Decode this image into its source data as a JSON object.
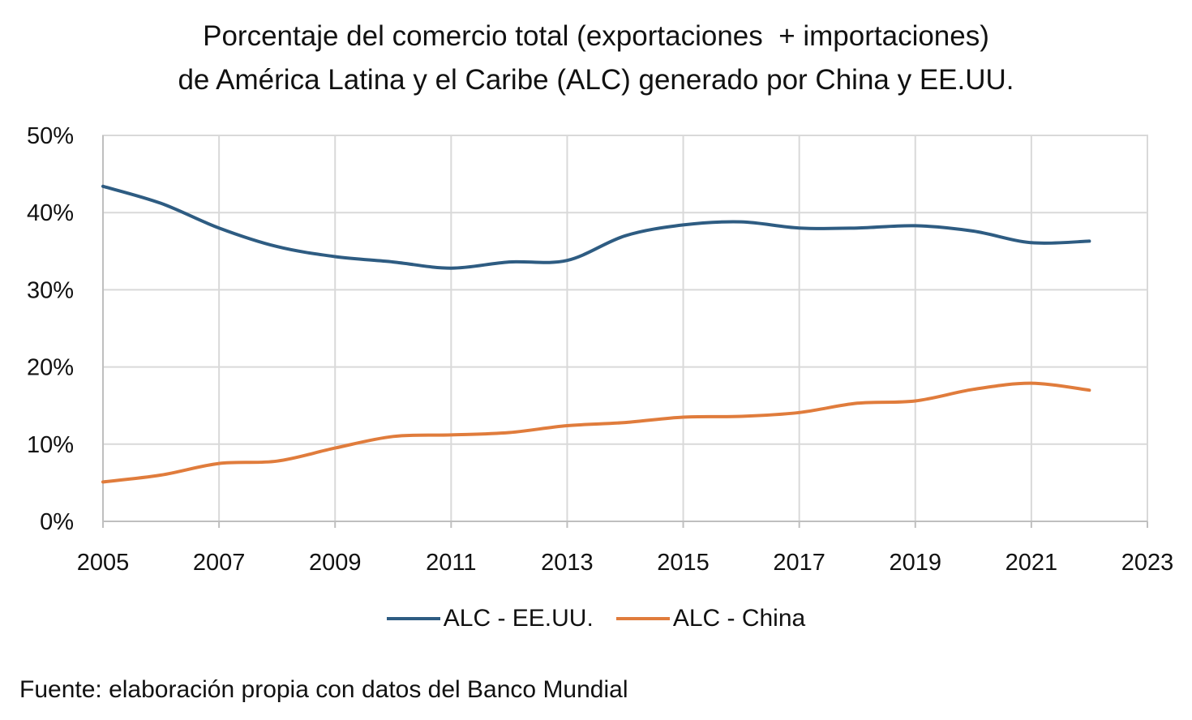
{
  "chart_data": {
    "type": "line",
    "title_lines": [
      "Porcentaje del comercio total (exportaciones  + importaciones)",
      "de América Latina y el Caribe (ALC) generado por China y EE.UU."
    ],
    "x": [
      2005,
      2006,
      2007,
      2008,
      2009,
      2010,
      2011,
      2012,
      2013,
      2014,
      2015,
      2016,
      2017,
      2018,
      2019,
      2020,
      2021,
      2022
    ],
    "series": [
      {
        "name": "ALC - EE.UU.",
        "color": "#2e5c82",
        "values": [
          43.4,
          41.2,
          38.0,
          35.6,
          34.3,
          33.6,
          32.8,
          33.6,
          33.8,
          37.0,
          38.4,
          38.8,
          38.0,
          38.0,
          38.3,
          37.6,
          36.1,
          36.3
        ]
      },
      {
        "name": "ALC - China",
        "color": "#e07c3c",
        "values": [
          5.1,
          6.0,
          7.5,
          7.8,
          9.5,
          11.0,
          11.2,
          11.5,
          12.4,
          12.8,
          13.5,
          13.6,
          14.1,
          15.3,
          15.6,
          17.1,
          17.9,
          17.0
        ]
      }
    ],
    "xlim": [
      2005,
      2023
    ],
    "ylim": [
      0,
      50
    ],
    "x_ticks": [
      "2005",
      "2007",
      "2009",
      "2011",
      "2013",
      "2015",
      "2017",
      "2019",
      "2021",
      "2023"
    ],
    "y_ticks": [
      "0%",
      "10%",
      "20%",
      "30%",
      "40%",
      "50%"
    ],
    "grid": true,
    "legend_position": "bottom"
  },
  "legend": {
    "us_label": "ALC - EE.UU.",
    "china_label": "ALC - China"
  },
  "source": "Fuente: elaboración propia con datos del Banco Mundial"
}
